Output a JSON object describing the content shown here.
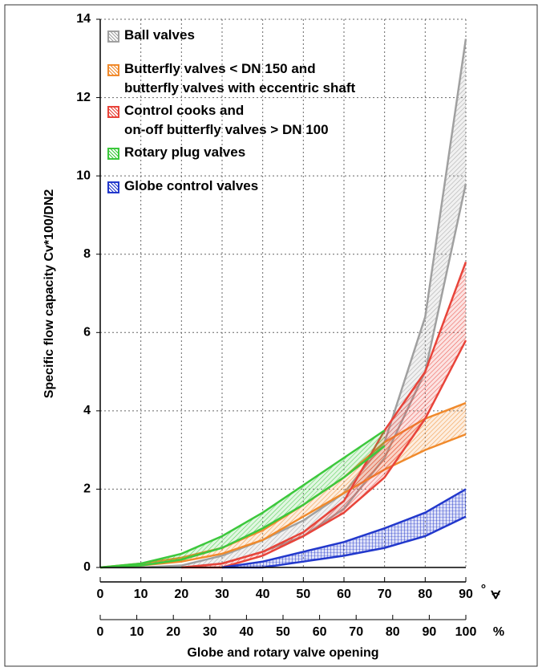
{
  "chart_data": {
    "type": "band",
    "x_axis_label": "Globe and rotary valve opening",
    "y_axis_label": "Specific flow capacity Cv*100/DN2",
    "x_unit": "°",
    "x_symbol": "∢",
    "x2_unit": "%",
    "x": [
      0,
      10,
      20,
      30,
      40,
      50,
      60,
      70,
      80,
      90
    ],
    "xlim": [
      0,
      90
    ],
    "xticks": [
      0,
      10,
      20,
      30,
      40,
      50,
      60,
      70,
      80,
      90
    ],
    "x2lim": [
      0,
      100
    ],
    "x2ticks": [
      0,
      10,
      20,
      30,
      40,
      50,
      60,
      70,
      80,
      90,
      100
    ],
    "ylim": [
      0,
      14
    ],
    "yticks": [
      0,
      2,
      4,
      6,
      8,
      10,
      12,
      14
    ],
    "grid": true,
    "series": [
      {
        "name": "Ball valves",
        "color": "#a0a0a0",
        "upper": [
          0,
          0,
          0.05,
          0.3,
          0.7,
          1.2,
          1.9,
          3.2,
          6.4,
          13.5
        ],
        "lower": [
          0,
          0,
          0,
          0.1,
          0.4,
          0.8,
          1.5,
          2.8,
          5.0,
          9.8
        ]
      },
      {
        "name": "Butterfly valves < DN 150 and\nbutterfly valves with eccentric shaft",
        "color": "#f08a2c",
        "upper": [
          0,
          0.1,
          0.25,
          0.5,
          0.95,
          1.6,
          2.3,
          3.2,
          3.8,
          4.2
        ],
        "lower": [
          0,
          0.05,
          0.15,
          0.35,
          0.7,
          1.3,
          1.9,
          2.5,
          3.0,
          3.4
        ]
      },
      {
        "name": "Control cooks and\non-off butterfly valves > DN 100",
        "color": "#e8443a",
        "upper": [
          null,
          null,
          0,
          0.1,
          0.4,
          0.9,
          1.7,
          3.5,
          5.0,
          7.8
        ],
        "lower": [
          null,
          null,
          0,
          0,
          0.3,
          0.8,
          1.4,
          2.3,
          3.8,
          5.8
        ]
      },
      {
        "name": "Rotary plug valves",
        "color": "#3cc83c",
        "upper": [
          0,
          0.1,
          0.35,
          0.8,
          1.4,
          2.1,
          2.8,
          3.5,
          null,
          null
        ],
        "lower": [
          0,
          0.05,
          0.2,
          0.5,
          1.0,
          1.6,
          2.3,
          3.1,
          null,
          null
        ]
      },
      {
        "name": "Globe control valves",
        "color": "#2238cc",
        "upper": [
          null,
          null,
          null,
          0,
          0.15,
          0.4,
          0.65,
          1.0,
          1.4,
          2.0
        ],
        "lower": [
          null,
          null,
          null,
          0,
          0,
          0.15,
          0.3,
          0.5,
          0.8,
          1.3
        ]
      }
    ]
  }
}
